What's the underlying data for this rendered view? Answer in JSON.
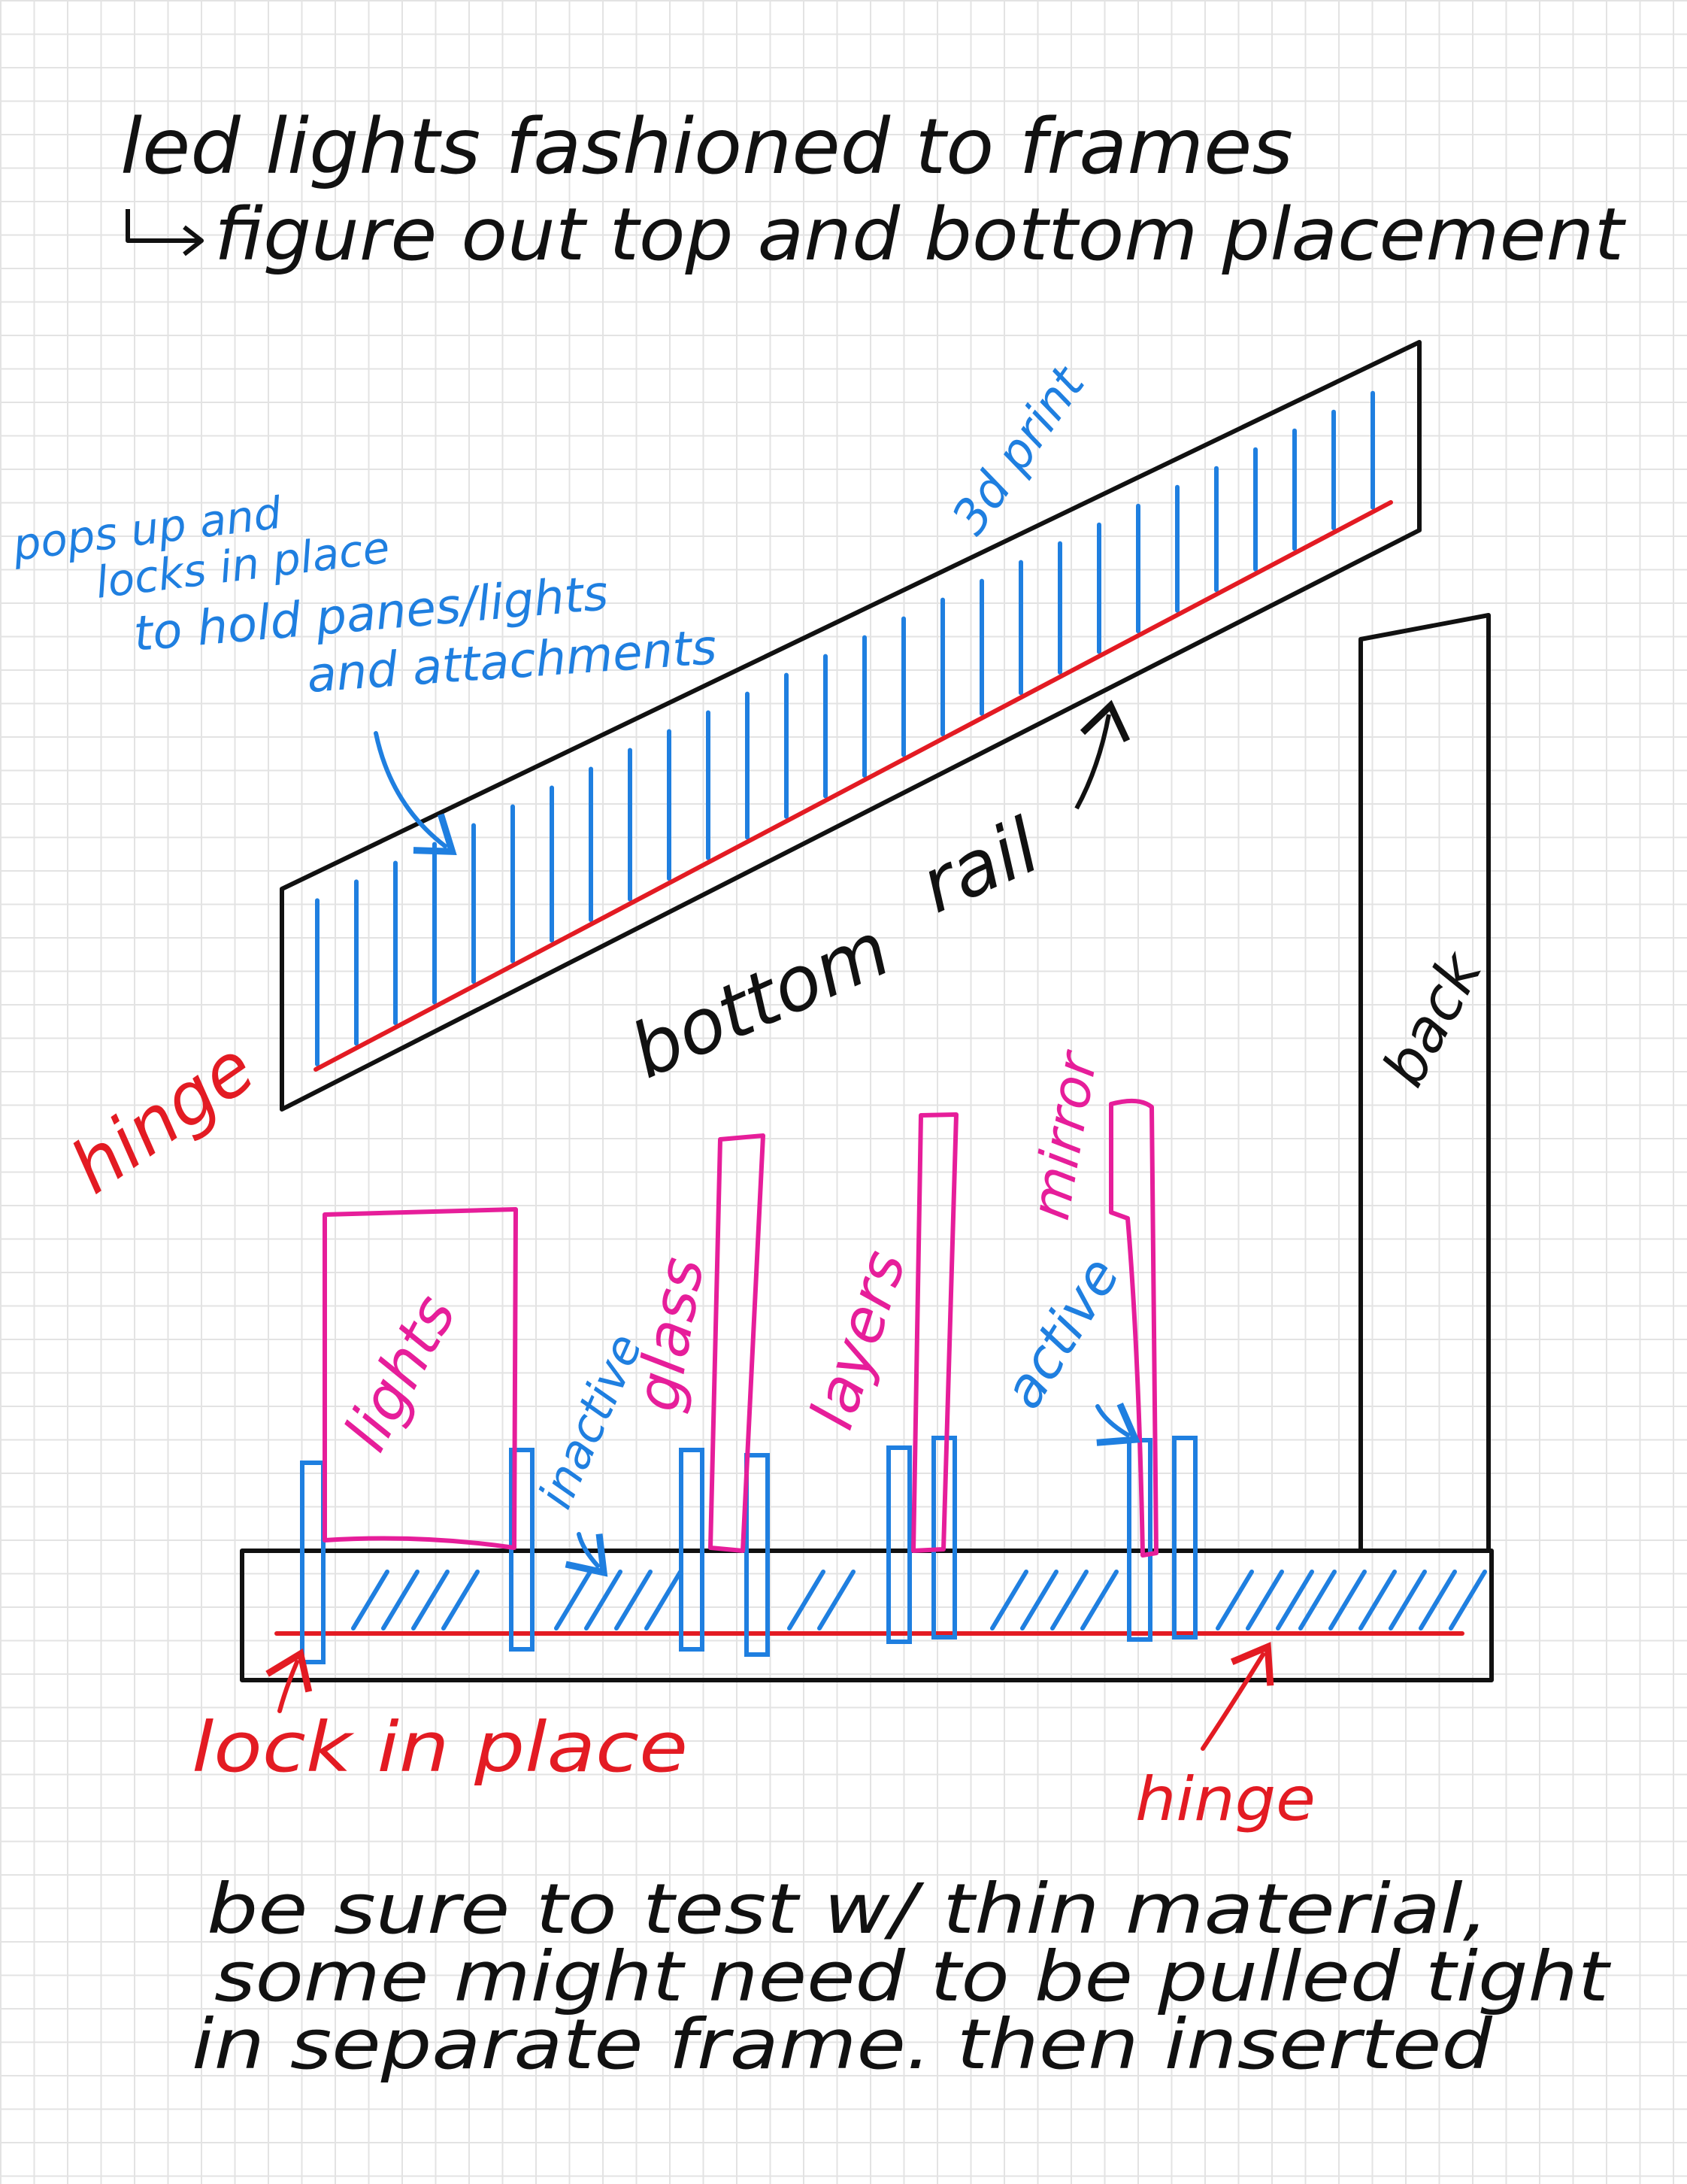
{
  "title": {
    "line1": "led lights fashioned to frames",
    "line2": "figure out top and bottom placement"
  },
  "top_rail": {
    "note_lines": [
      "pops up and",
      "locks in place",
      "to hold panes/lights",
      "and attachments"
    ],
    "print_label": "3d print",
    "hinge_label": "hinge",
    "bottom_label": "bottom",
    "rail_label": "rail"
  },
  "back": {
    "label": "back"
  },
  "bottom_rail": {
    "lights_label": "lights",
    "inactive_label": "inactive",
    "glass_label": "glass",
    "layers_label": "layers",
    "active_label": "active",
    "mirror_label": "mirror",
    "lock_label": "lock in place",
    "hinge_label": "hinge"
  },
  "footer": {
    "line1": "be sure to test w/ thin material,",
    "line2": "some might need to be pulled tight",
    "line3": "in separate frame. then inserted"
  },
  "colors": {
    "ink": "#111111",
    "blue": "#1f7fe0",
    "red": "#e31b23",
    "pink": "#e61e9a",
    "grid": "#e3e3e3"
  }
}
